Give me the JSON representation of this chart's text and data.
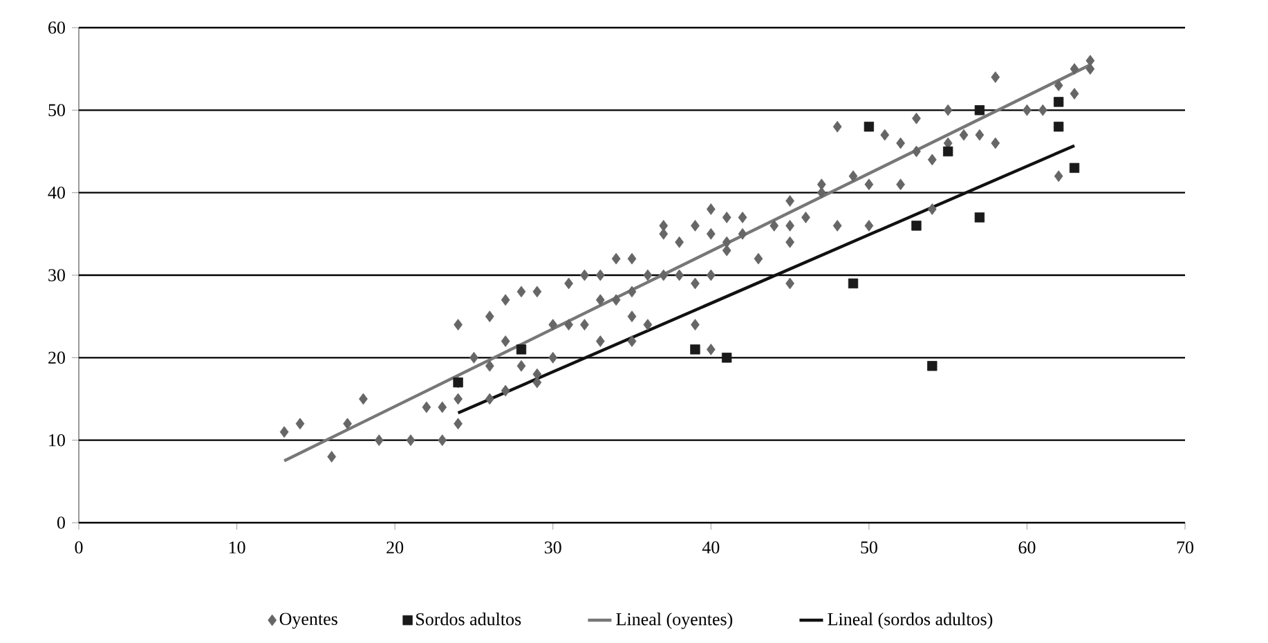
{
  "chart_data": {
    "type": "scatter",
    "xlim": [
      0,
      70
    ],
    "ylim": [
      0,
      60
    ],
    "xticks": [
      0,
      10,
      20,
      30,
      40,
      50,
      60,
      70
    ],
    "yticks": [
      0,
      10,
      20,
      30,
      40,
      50,
      60
    ],
    "grid": "y",
    "legend": "bottom",
    "series": [
      {
        "name": "Oyentes",
        "marker": "diamond",
        "color": "#666666",
        "x": [
          13,
          14,
          16,
          17,
          18,
          19,
          21,
          22,
          23,
          23,
          24,
          24,
          24,
          24,
          25,
          26,
          26,
          26,
          27,
          27,
          27,
          28,
          28,
          29,
          29,
          29,
          30,
          30,
          31,
          31,
          32,
          32,
          33,
          33,
          33,
          34,
          34,
          35,
          35,
          35,
          35,
          36,
          36,
          37,
          37,
          37,
          38,
          38,
          39,
          39,
          39,
          40,
          40,
          40,
          40,
          41,
          41,
          41,
          42,
          42,
          43,
          44,
          45,
          45,
          45,
          45,
          46,
          47,
          47,
          48,
          48,
          49,
          50,
          50,
          51,
          52,
          52,
          53,
          53,
          54,
          54,
          55,
          55,
          56,
          57,
          58,
          58,
          60,
          61,
          62,
          62,
          63,
          63,
          64,
          64
        ],
        "values": [
          11,
          12,
          8,
          12,
          15,
          10,
          10,
          14,
          10,
          14,
          24,
          12,
          15,
          17,
          20,
          25,
          19,
          15,
          27,
          22,
          16,
          28,
          19,
          28,
          18,
          17,
          24,
          20,
          29,
          24,
          30,
          24,
          30,
          27,
          22,
          32,
          27,
          32,
          28,
          25,
          22,
          30,
          24,
          36,
          35,
          30,
          34,
          30,
          36,
          29,
          24,
          38,
          35,
          30,
          21,
          37,
          34,
          33,
          37,
          35,
          32,
          36,
          39,
          36,
          34,
          29,
          37,
          41,
          40,
          48,
          36,
          42,
          41,
          36,
          47,
          46,
          41,
          49,
          45,
          44,
          38,
          50,
          46,
          47,
          47,
          54,
          46,
          50,
          50,
          53,
          42,
          52,
          55,
          56,
          55
        ]
      },
      {
        "name": "Sordos adultos",
        "marker": "square",
        "color": "#1a1a1a",
        "x": [
          24,
          28,
          39,
          41,
          49,
          50,
          53,
          54,
          55,
          57,
          57,
          62,
          62,
          63
        ],
        "values": [
          17,
          21,
          21,
          20,
          29,
          48,
          36,
          19,
          45,
          50,
          37,
          51,
          48,
          43
        ]
      },
      {
        "name": "Lineal (oyentes)",
        "type": "line",
        "marker": "none",
        "color": "#777777",
        "x": [
          13,
          64
        ],
        "values": [
          7.5,
          55.5
        ]
      },
      {
        "name": "Lineal (sordos adultos)",
        "type": "line",
        "marker": "none",
        "color": "#111111",
        "x": [
          24,
          63
        ],
        "values": [
          13.3,
          45.7
        ]
      }
    ]
  }
}
